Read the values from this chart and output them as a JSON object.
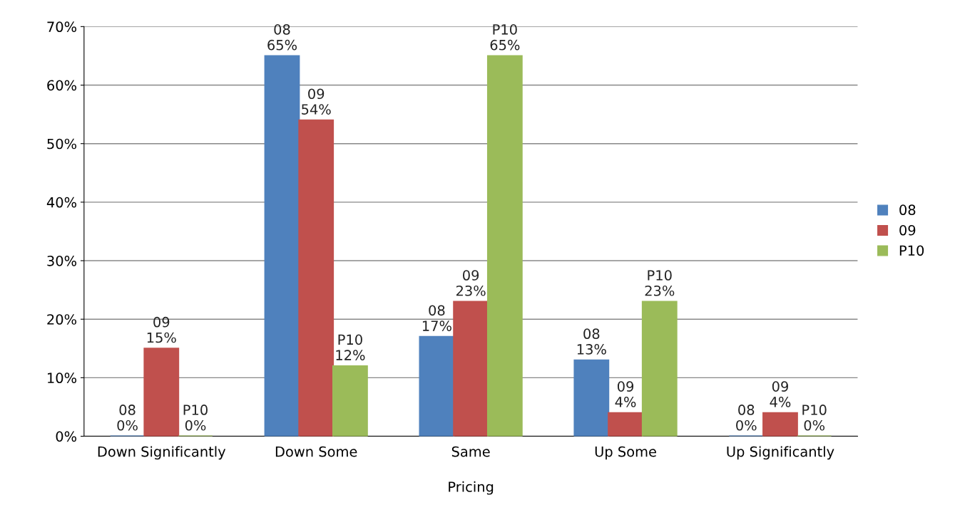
{
  "chart_data": {
    "type": "bar",
    "xlabel": "Pricing",
    "categories": [
      "Down Significantly",
      "Down Some",
      "Same",
      "Up Some",
      "Up Significantly"
    ],
    "series": [
      {
        "name": "08",
        "color": "#4f81bd",
        "values": [
          0,
          65,
          17,
          13,
          0
        ],
        "value_labels": [
          "08\n0%",
          "08\n65%",
          "08\n17%",
          "08\n13%",
          "08\n0%"
        ]
      },
      {
        "name": "09",
        "color": "#c0504d",
        "values": [
          15,
          54,
          23,
          4,
          4
        ],
        "value_labels": [
          "09\n15%",
          "09\n54%",
          "09\n23%",
          "09\n4%",
          "09\n4%"
        ]
      },
      {
        "name": "P10",
        "color": "#9bbb59",
        "values": [
          0,
          12,
          65,
          23,
          0
        ],
        "value_labels": [
          "P10\n0%",
          "P10\n12%",
          "P10\n65%",
          "P10\n23%",
          "P10\n0%"
        ]
      }
    ],
    "ylim": [
      0,
      70
    ],
    "yticks": [
      {
        "value": 0,
        "label": "0%"
      },
      {
        "value": 10,
        "label": "10%"
      },
      {
        "value": 20,
        "label": "20%"
      },
      {
        "value": 30,
        "label": "30%"
      },
      {
        "value": 40,
        "label": "40%"
      },
      {
        "value": 50,
        "label": "50%"
      },
      {
        "value": 60,
        "label": "60%"
      },
      {
        "value": 70,
        "label": "70%"
      }
    ],
    "grid": "y",
    "legend": "right"
  }
}
